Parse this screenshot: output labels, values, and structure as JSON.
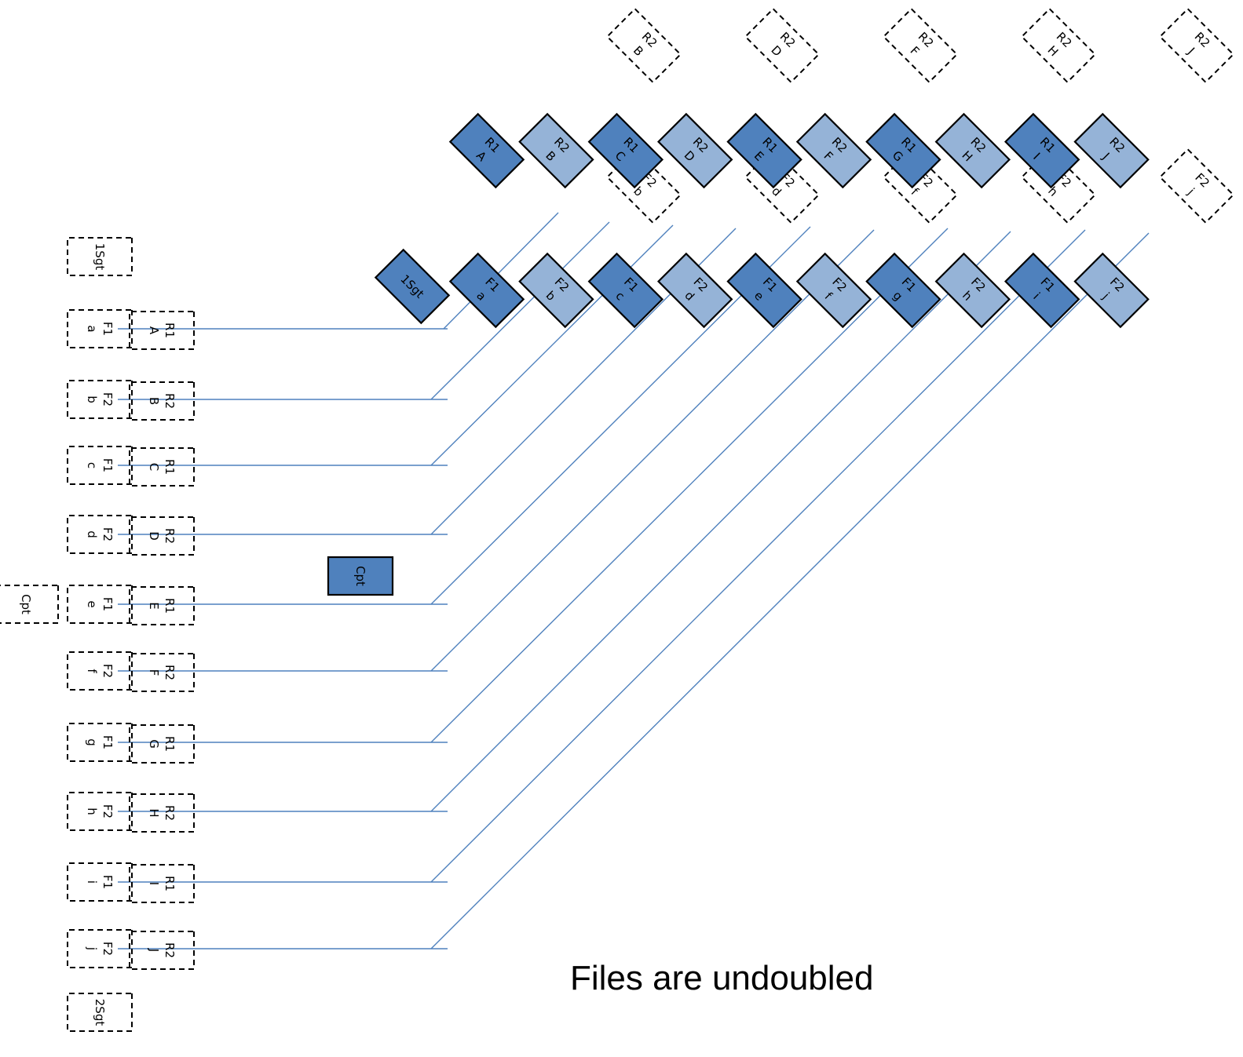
{
  "caption": "Files are undoubled",
  "colors": {
    "dark": "#4f81bd",
    "light": "#95b3d7",
    "line": "#4f81bd",
    "outline": "#000000"
  },
  "cpt_dashed": "Cpt",
  "cpt_block": "Cpt",
  "sgt_top": "1Sgt",
  "sgt_bottom": "2Sgt",
  "sgt_diag": "1Sgt",
  "file_column": [
    [
      "F1",
      "a"
    ],
    [
      "F2",
      "b"
    ],
    [
      "F1",
      "c"
    ],
    [
      "F2",
      "d"
    ],
    [
      "F1",
      "e"
    ],
    [
      "F2",
      "f"
    ],
    [
      "F1",
      "g"
    ],
    [
      "F2",
      "h"
    ],
    [
      "F1",
      "i"
    ],
    [
      "F2",
      "j"
    ]
  ],
  "rank_column": [
    [
      "R1",
      "A"
    ],
    [
      "R2",
      "B"
    ],
    [
      "R1",
      "C"
    ],
    [
      "R2",
      "D"
    ],
    [
      "R1",
      "E"
    ],
    [
      "R2",
      "F"
    ],
    [
      "R1",
      "G"
    ],
    [
      "R2",
      "H"
    ],
    [
      "R1",
      "I"
    ],
    [
      "R2",
      "J"
    ]
  ],
  "rank_diag": [
    [
      "R1",
      "A",
      "dark"
    ],
    [
      "R2",
      "B",
      "light"
    ],
    [
      "R1",
      "C",
      "dark"
    ],
    [
      "R2",
      "D",
      "light"
    ],
    [
      "R1",
      "E",
      "dark"
    ],
    [
      "R2",
      "F",
      "light"
    ],
    [
      "R1",
      "G",
      "dark"
    ],
    [
      "R2",
      "H",
      "light"
    ],
    [
      "R1",
      "I",
      "dark"
    ],
    [
      "R2",
      "J",
      "light"
    ]
  ],
  "file_diag": [
    [
      "F1",
      "a",
      "dark"
    ],
    [
      "F2",
      "b",
      "light"
    ],
    [
      "F1",
      "c",
      "dark"
    ],
    [
      "F2",
      "d",
      "light"
    ],
    [
      "F1",
      "e",
      "dark"
    ],
    [
      "F2",
      "f",
      "light"
    ],
    [
      "F1",
      "g",
      "dark"
    ],
    [
      "F2",
      "h",
      "light"
    ],
    [
      "F1",
      "i",
      "dark"
    ],
    [
      "F2",
      "j",
      "light"
    ]
  ],
  "ghost_top": [
    [
      "R2",
      "B"
    ],
    [
      "R2",
      "D"
    ],
    [
      "R2",
      "F"
    ],
    [
      "R2",
      "H"
    ],
    [
      "R2",
      "J"
    ]
  ],
  "ghost_mid": [
    [
      "F2",
      "b"
    ],
    [
      "F2",
      "d"
    ],
    [
      "F2",
      "f"
    ],
    [
      "F2",
      "h"
    ],
    [
      "F2",
      "j"
    ]
  ]
}
